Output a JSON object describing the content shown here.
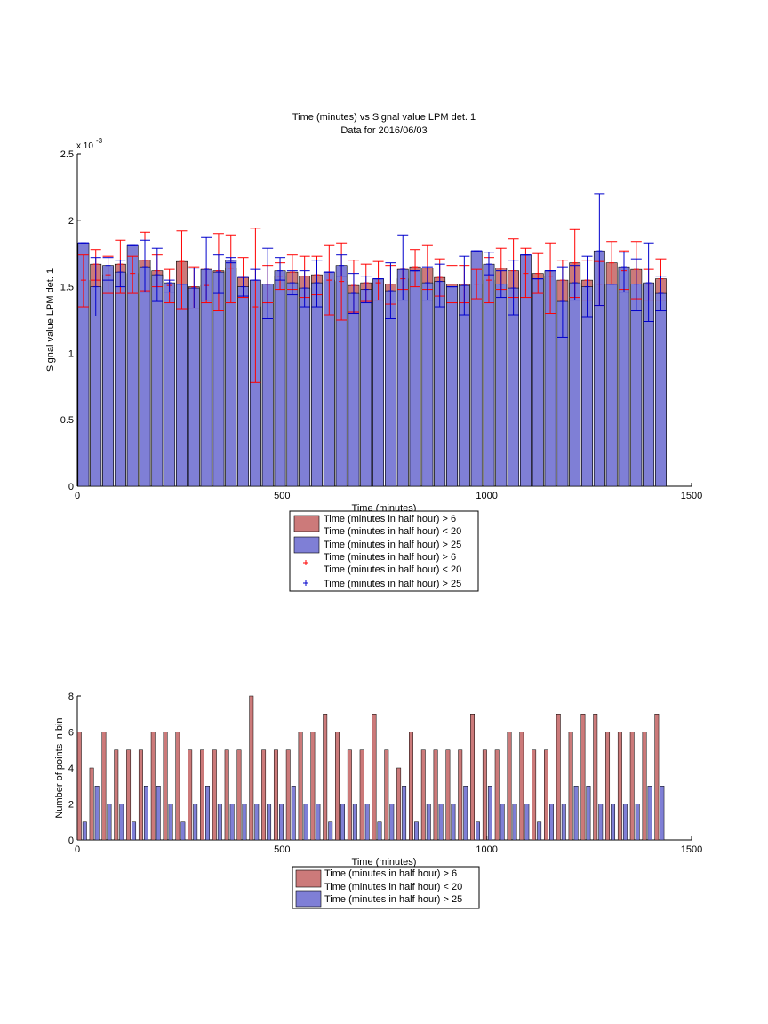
{
  "colors": {
    "red_fill": "#cc7a7a",
    "blue_fill": "#7f7fd6",
    "red_err": "#ff0000",
    "blue_err": "#0000cc",
    "axis": "#000000"
  },
  "chart_data": [
    {
      "type": "bar",
      "title": "Time (minutes) vs Signal value LPM det. 1",
      "subtitle": "Data for 2016/06/03",
      "xlabel": "Time (minutes)",
      "ylabel": "Signal value LPM det. 1",
      "y_exponent_label": "x 10",
      "y_exponent_power": "-3",
      "xlim": [
        0,
        1500
      ],
      "ylim": [
        0,
        2.5
      ],
      "xticks": [
        "0",
        "500",
        "1000",
        "1500"
      ],
      "yticks": [
        "0",
        "0.5",
        "1",
        "1.5",
        "2",
        "2.5"
      ],
      "legend_position": "below",
      "x": [
        15,
        45,
        75,
        105,
        135,
        165,
        195,
        225,
        255,
        285,
        315,
        345,
        375,
        405,
        435,
        465,
        495,
        525,
        555,
        585,
        615,
        645,
        675,
        705,
        735,
        765,
        795,
        825,
        855,
        885,
        915,
        945,
        975,
        1005,
        1035,
        1065,
        1095,
        1125,
        1155,
        1185,
        1215,
        1245,
        1275,
        1305,
        1335,
        1365,
        1395,
        1425
      ],
      "series": [
        {
          "name": "Time (minutes in half hour) > 6\nTime (minutes in half hour) < 20",
          "color": "#cc7a7a",
          "values": [
            1.55,
            1.67,
            1.59,
            1.67,
            1.6,
            1.7,
            1.62,
            1.51,
            1.69,
            1.5,
            1.51,
            1.62,
            1.64,
            1.57,
            1.35,
            1.52,
            1.58,
            1.61,
            1.58,
            1.59,
            1.55,
            1.54,
            1.51,
            1.53,
            1.53,
            1.52,
            1.56,
            1.65,
            1.64,
            1.57,
            1.52,
            1.52,
            1.52,
            1.55,
            1.64,
            1.62,
            1.6,
            1.6,
            1.58,
            1.55,
            1.68,
            1.55,
            1.52,
            1.68,
            1.62,
            1.63,
            1.52,
            1.56
          ],
          "err_low": [
            1.35,
            1.55,
            1.45,
            1.45,
            1.45,
            1.47,
            1.5,
            1.38,
            1.33,
            1.34,
            1.38,
            1.32,
            1.38,
            1.42,
            0.78,
            1.38,
            1.48,
            1.48,
            1.42,
            1.44,
            1.29,
            1.25,
            1.31,
            1.39,
            1.4,
            1.37,
            1.48,
            1.5,
            1.48,
            1.43,
            1.38,
            1.38,
            1.41,
            1.38,
            1.48,
            1.42,
            1.42,
            1.45,
            1.3,
            1.4,
            1.42,
            1.4,
            1.36,
            1.52,
            1.48,
            1.41,
            1.4,
            1.4
          ],
          "err_high": [
            1.74,
            1.78,
            1.73,
            1.85,
            1.73,
            1.91,
            1.74,
            1.63,
            1.92,
            1.65,
            1.64,
            1.9,
            1.89,
            1.72,
            1.94,
            1.66,
            1.68,
            1.74,
            1.73,
            1.73,
            1.81,
            1.83,
            1.7,
            1.67,
            1.69,
            1.66,
            1.64,
            1.78,
            1.81,
            1.71,
            1.66,
            1.66,
            1.63,
            1.72,
            1.79,
            1.86,
            1.79,
            1.75,
            1.83,
            1.7,
            1.93,
            1.7,
            1.69,
            1.84,
            1.77,
            1.84,
            1.63,
            1.71
          ]
        },
        {
          "name": "Time (minutes in half hour) > 25",
          "color": "#7f7fd6",
          "values": [
            1.83,
            1.5,
            1.66,
            1.61,
            1.81,
            1.65,
            1.59,
            1.53,
            1.52,
            1.49,
            1.63,
            1.61,
            1.7,
            1.5,
            1.55,
            1.52,
            1.62,
            1.53,
            1.49,
            1.53,
            1.61,
            1.66,
            1.45,
            1.48,
            1.56,
            1.47,
            1.63,
            1.62,
            1.53,
            1.54,
            1.5,
            1.51,
            1.77,
            1.67,
            1.52,
            1.49,
            1.74,
            1.56,
            1.62,
            1.39,
            1.53,
            1.5,
            1.77,
            1.52,
            1.65,
            1.52,
            1.53,
            1.45
          ],
          "err_low": [
            1.83,
            1.28,
            1.55,
            1.5,
            1.81,
            1.46,
            1.39,
            1.46,
            1.52,
            1.34,
            1.4,
            1.45,
            1.68,
            1.43,
            1.55,
            1.26,
            1.55,
            1.44,
            1.35,
            1.35,
            1.61,
            1.58,
            1.3,
            1.38,
            1.56,
            1.26,
            1.4,
            1.62,
            1.4,
            1.35,
            1.5,
            1.29,
            1.77,
            1.59,
            1.42,
            1.29,
            1.74,
            1.56,
            1.62,
            1.12,
            1.4,
            1.27,
            1.36,
            1.52,
            1.46,
            1.32,
            1.24,
            1.32
          ],
          "err_high": [
            1.83,
            1.72,
            1.72,
            1.7,
            1.81,
            1.85,
            1.79,
            1.55,
            1.52,
            1.64,
            1.87,
            1.74,
            1.72,
            1.57,
            1.63,
            1.79,
            1.72,
            1.62,
            1.62,
            1.7,
            1.61,
            1.74,
            1.6,
            1.58,
            1.56,
            1.68,
            1.89,
            1.62,
            1.65,
            1.67,
            1.5,
            1.73,
            1.77,
            1.76,
            1.62,
            1.7,
            1.74,
            1.56,
            1.62,
            1.65,
            1.66,
            1.73,
            2.2,
            1.52,
            1.76,
            1.71,
            1.83,
            1.58
          ]
        }
      ]
    },
    {
      "type": "bar",
      "title": "",
      "xlabel": "Time (minutes)",
      "ylabel": "Number of points in bin",
      "xlim": [
        0,
        1500
      ],
      "ylim": [
        0,
        8
      ],
      "xticks": [
        "0",
        "500",
        "1000",
        "1500"
      ],
      "yticks": [
        "0",
        "2",
        "4",
        "6",
        "8"
      ],
      "legend_position": "below",
      "x": [
        15,
        45,
        75,
        105,
        135,
        165,
        195,
        225,
        255,
        285,
        315,
        345,
        375,
        405,
        435,
        465,
        495,
        525,
        555,
        585,
        615,
        645,
        675,
        705,
        735,
        765,
        795,
        825,
        855,
        885,
        915,
        945,
        975,
        1005,
        1035,
        1065,
        1095,
        1125,
        1155,
        1185,
        1215,
        1245,
        1275,
        1305,
        1335,
        1365,
        1395,
        1425
      ],
      "series": [
        {
          "name": "Time (minutes in half hour) > 6\nTime (minutes in half hour) < 20",
          "color": "#cc7a7a",
          "values": [
            6,
            4,
            6,
            5,
            5,
            5,
            6,
            6,
            6,
            5,
            5,
            5,
            5,
            5,
            8,
            5,
            5,
            5,
            6,
            6,
            7,
            6,
            5,
            5,
            7,
            5,
            4,
            6,
            5,
            5,
            5,
            5,
            7,
            5,
            5,
            6,
            6,
            5,
            5,
            7,
            6,
            7,
            7,
            6,
            6,
            6,
            6,
            7
          ]
        },
        {
          "name": "Time (minutes in half hour) > 25",
          "color": "#7f7fd6",
          "values": [
            1,
            3,
            2,
            2,
            1,
            3,
            3,
            2,
            1,
            2,
            3,
            2,
            2,
            2,
            2,
            2,
            2,
            3,
            2,
            2,
            1,
            2,
            2,
            2,
            1,
            2,
            3,
            1,
            2,
            2,
            2,
            3,
            1,
            3,
            2,
            2,
            2,
            1,
            2,
            2,
            3,
            3,
            2,
            2,
            2,
            2,
            3,
            3
          ]
        }
      ]
    }
  ],
  "legend1": [
    {
      "line1": "Time (minutes in half hour) > 6",
      "line2": "Time (minutes in half hour) < 20"
    },
    {
      "line1": "Time (minutes in half hour) > 25"
    },
    {
      "line1": "Time (minutes in half hour) > 6",
      "line2": "Time (minutes in half hour) < 20"
    },
    {
      "line1": "Time (minutes in half hour) > 25"
    }
  ],
  "legend2": [
    {
      "line1": "Time (minutes in half hour) > 6"
    },
    {
      "line1": "Time (minutes in half hour) < 20"
    },
    {
      "line1": "Time (minutes in half hour) > 25"
    }
  ]
}
